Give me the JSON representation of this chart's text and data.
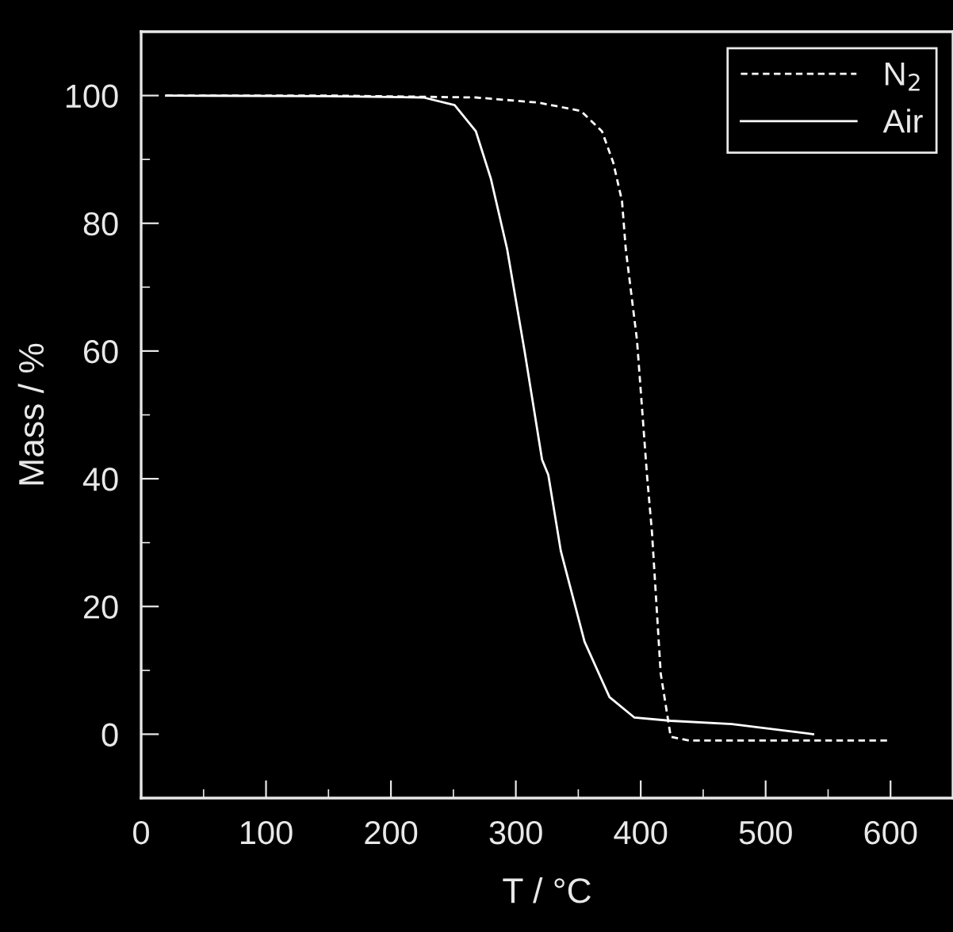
{
  "chart_data": {
    "type": "line",
    "xlabel": "T / °C",
    "ylabel": "Mass / %",
    "xlim": [
      0,
      650
    ],
    "ylim": [
      -10,
      110
    ],
    "xticks": [
      0,
      100,
      200,
      300,
      400,
      500,
      600
    ],
    "yticks": [
      0,
      20,
      40,
      60,
      80,
      100
    ],
    "grid": false,
    "legend": "top right",
    "marker": "none",
    "series": [
      {
        "name": "N$_{2}$",
        "color": "#ffffff",
        "line_style": "dashed",
        "x": [
          20,
          150,
          268,
          318,
          352,
          369,
          378,
          385,
          388,
          397,
          405,
          409,
          416,
          424,
          439,
          500,
          600
        ],
        "values": [
          100,
          100,
          99.7,
          98.9,
          97.6,
          94.4,
          89.5,
          83.5,
          76,
          61.7,
          40.6,
          31.6,
          9.5,
          -0.4,
          -1,
          -1,
          -1
        ]
      },
      {
        "name": "Air",
        "color": "#ffffff",
        "line_style": "solid",
        "x": [
          20,
          150,
          226,
          251,
          268,
          280,
          293,
          307,
          321,
          326,
          336,
          355,
          375,
          395,
          424,
          473,
          538
        ],
        "values": [
          100,
          99.9,
          99.7,
          98.5,
          94.4,
          87,
          76,
          60,
          43,
          40.6,
          28.7,
          14.5,
          5.8,
          2.6,
          2.1,
          1.6,
          0
        ]
      }
    ]
  }
}
